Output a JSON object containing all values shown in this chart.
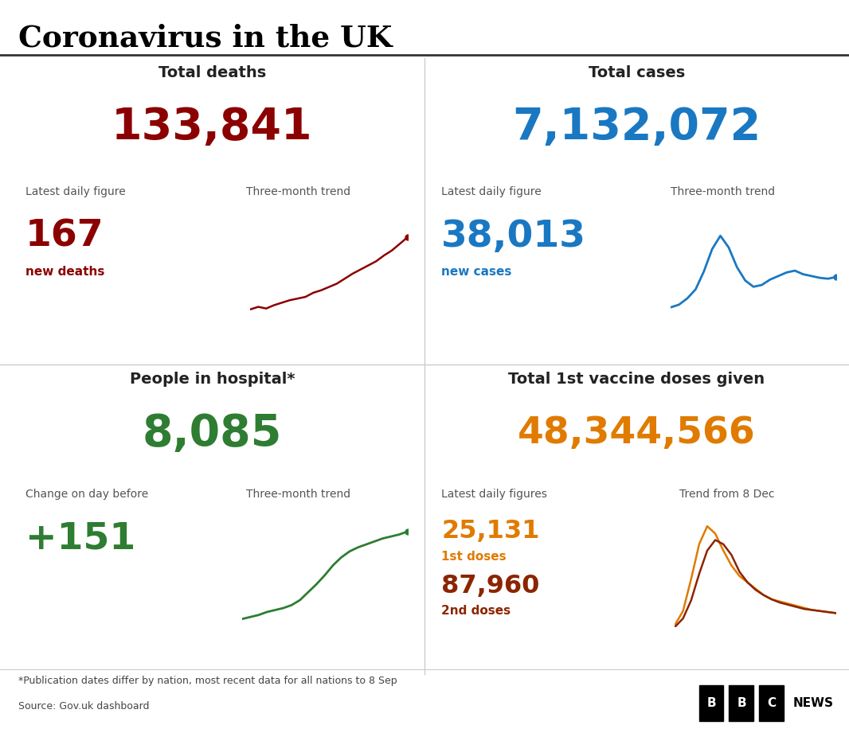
{
  "title": "Coronavirus in the UK",
  "bg_color": "#ffffff",
  "title_color": "#000000",
  "deaths_label": "Total deaths",
  "deaths_value": "133,841",
  "deaths_color": "#8b0000",
  "deaths_daily_label": "Latest daily figure",
  "deaths_daily_value": "167",
  "deaths_daily_sub": "new deaths",
  "deaths_trend_label": "Three-month trend",
  "cases_label": "Total cases",
  "cases_value": "7,132,072",
  "cases_color": "#1a78c2",
  "cases_daily_label": "Latest daily figure",
  "cases_daily_value": "38,013",
  "cases_daily_sub": "new cases",
  "cases_trend_label": "Three-month trend",
  "hospital_label": "People in hospital*",
  "hospital_value": "8,085",
  "hospital_color": "#2e7d32",
  "hospital_change_label": "Change on day before",
  "hospital_change_value": "+151",
  "hospital_trend_label": "Three-month trend",
  "vaccine_label": "Total 1st vaccine doses given",
  "vaccine_value": "48,344,566",
  "vaccine_color": "#e07b00",
  "vaccine_daily_label": "Latest daily figures",
  "vaccine_1st_value": "25,131",
  "vaccine_1st_sub": "1st doses",
  "vaccine_1st_color": "#e07b00",
  "vaccine_2nd_value": "87,960",
  "vaccine_2nd_sub": "2nd doses",
  "vaccine_2nd_color": "#8b2500",
  "vaccine_trend_label": "Trend from 8 Dec",
  "footnote": "*Publication dates differ by nation, most recent data for all nations to 8 Sep",
  "source": "Source: Gov.uk dashboard",
  "label_color": "#555555",
  "deaths_trend_x": [
    0,
    1,
    2,
    3,
    4,
    5,
    6,
    7,
    8,
    9,
    10,
    11,
    12,
    13,
    14,
    15,
    16,
    17,
    18,
    19,
    20
  ],
  "deaths_trend_y": [
    0.05,
    0.08,
    0.06,
    0.1,
    0.13,
    0.16,
    0.18,
    0.2,
    0.25,
    0.28,
    0.32,
    0.36,
    0.42,
    0.48,
    0.53,
    0.58,
    0.63,
    0.7,
    0.76,
    0.84,
    0.92
  ],
  "cases_trend_x": [
    0,
    1,
    2,
    3,
    4,
    5,
    6,
    7,
    8,
    9,
    10,
    11,
    12,
    13,
    14,
    15,
    16,
    17,
    18,
    19,
    20
  ],
  "cases_trend_y": [
    0.15,
    0.18,
    0.25,
    0.35,
    0.55,
    0.8,
    0.95,
    0.82,
    0.6,
    0.45,
    0.38,
    0.4,
    0.46,
    0.5,
    0.54,
    0.56,
    0.52,
    0.5,
    0.48,
    0.47,
    0.49
  ],
  "hospital_trend_x": [
    0,
    1,
    2,
    3,
    4,
    5,
    6,
    7,
    8,
    9,
    10,
    11,
    12,
    13,
    14,
    15,
    16,
    17,
    18,
    19,
    20
  ],
  "hospital_trend_y": [
    0.08,
    0.1,
    0.12,
    0.15,
    0.17,
    0.19,
    0.22,
    0.27,
    0.35,
    0.43,
    0.52,
    0.62,
    0.7,
    0.76,
    0.8,
    0.83,
    0.86,
    0.89,
    0.91,
    0.93,
    0.96
  ],
  "vaccine_1st_trend_x": [
    0,
    1,
    2,
    3,
    4,
    5,
    6,
    7,
    8,
    9,
    10,
    11,
    12,
    13,
    14,
    15,
    16,
    17,
    18,
    19,
    20
  ],
  "vaccine_1st_trend_y": [
    0.02,
    0.15,
    0.45,
    0.78,
    0.95,
    0.88,
    0.72,
    0.58,
    0.48,
    0.42,
    0.36,
    0.3,
    0.26,
    0.24,
    0.22,
    0.2,
    0.18,
    0.16,
    0.15,
    0.14,
    0.13
  ],
  "vaccine_2nd_trend_x": [
    0,
    1,
    2,
    3,
    4,
    5,
    6,
    7,
    8,
    9,
    10,
    11,
    12,
    13,
    14,
    15,
    16,
    17,
    18,
    19,
    20
  ],
  "vaccine_2nd_trend_y": [
    0.0,
    0.08,
    0.25,
    0.5,
    0.72,
    0.82,
    0.78,
    0.68,
    0.52,
    0.42,
    0.35,
    0.3,
    0.26,
    0.23,
    0.21,
    0.19,
    0.17,
    0.16,
    0.15,
    0.14,
    0.13
  ]
}
